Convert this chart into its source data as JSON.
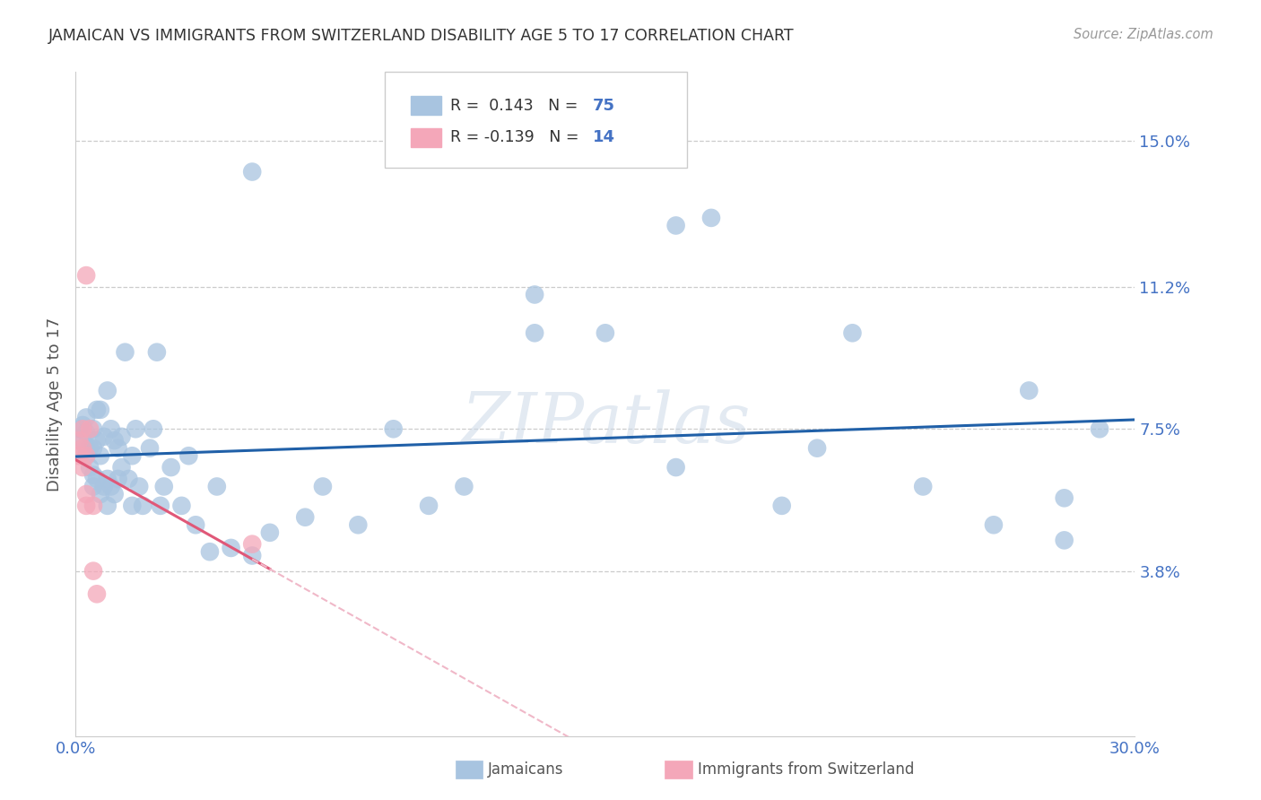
{
  "title": "JAMAICAN VS IMMIGRANTS FROM SWITZERLAND DISABILITY AGE 5 TO 17 CORRELATION CHART",
  "source": "Source: ZipAtlas.com",
  "ylabel": "Disability Age 5 to 17",
  "xlim": [
    0.0,
    0.3
  ],
  "ylim": [
    -0.005,
    0.168
  ],
  "yticks": [
    0.038,
    0.075,
    0.112,
    0.15
  ],
  "ytick_labels": [
    "3.8%",
    "7.5%",
    "11.2%",
    "15.0%"
  ],
  "xticks": [
    0.0,
    0.05,
    0.1,
    0.15,
    0.2,
    0.25,
    0.3
  ],
  "xtick_labels": [
    "0.0%",
    "",
    "",
    "",
    "",
    "",
    "30.0%"
  ],
  "watermark": "ZIPatlas",
  "legend1_r": "0.143",
  "legend1_n": "75",
  "legend2_r": "-0.139",
  "legend2_n": "14",
  "blue_color": "#a8c4e0",
  "pink_color": "#f4a7b9",
  "trend_blue": "#2060a8",
  "trend_pink": "#e05878",
  "trend_pink_dashed": "#f0b8c8",
  "jamaican_x": [
    0.001,
    0.002,
    0.002,
    0.003,
    0.003,
    0.003,
    0.003,
    0.004,
    0.004,
    0.005,
    0.005,
    0.005,
    0.005,
    0.006,
    0.006,
    0.006,
    0.007,
    0.007,
    0.007,
    0.008,
    0.008,
    0.009,
    0.009,
    0.009,
    0.01,
    0.01,
    0.011,
    0.011,
    0.012,
    0.012,
    0.013,
    0.013,
    0.014,
    0.015,
    0.016,
    0.016,
    0.017,
    0.018,
    0.019,
    0.021,
    0.022,
    0.023,
    0.024,
    0.025,
    0.027,
    0.03,
    0.032,
    0.034,
    0.038,
    0.04,
    0.044,
    0.05,
    0.055,
    0.065,
    0.07,
    0.08,
    0.09,
    0.1,
    0.11,
    0.13,
    0.15,
    0.17,
    0.18,
    0.2,
    0.21,
    0.22,
    0.24,
    0.26,
    0.27,
    0.28,
    0.29,
    0.05,
    0.13,
    0.17,
    0.28
  ],
  "jamaican_y": [
    0.075,
    0.072,
    0.076,
    0.068,
    0.07,
    0.074,
    0.078,
    0.065,
    0.07,
    0.06,
    0.063,
    0.07,
    0.075,
    0.062,
    0.072,
    0.08,
    0.058,
    0.068,
    0.08,
    0.06,
    0.073,
    0.055,
    0.062,
    0.085,
    0.06,
    0.075,
    0.058,
    0.072,
    0.062,
    0.07,
    0.065,
    0.073,
    0.095,
    0.062,
    0.055,
    0.068,
    0.075,
    0.06,
    0.055,
    0.07,
    0.075,
    0.095,
    0.055,
    0.06,
    0.065,
    0.055,
    0.068,
    0.05,
    0.043,
    0.06,
    0.044,
    0.042,
    0.048,
    0.052,
    0.06,
    0.05,
    0.075,
    0.055,
    0.06,
    0.11,
    0.1,
    0.065,
    0.13,
    0.055,
    0.07,
    0.1,
    0.06,
    0.05,
    0.085,
    0.046,
    0.075,
    0.142,
    0.1,
    0.128,
    0.057
  ],
  "swiss_x": [
    0.001,
    0.001,
    0.002,
    0.002,
    0.002,
    0.003,
    0.003,
    0.003,
    0.003,
    0.004,
    0.005,
    0.005,
    0.006,
    0.05
  ],
  "swiss_y": [
    0.068,
    0.072,
    0.065,
    0.07,
    0.075,
    0.055,
    0.058,
    0.115,
    0.068,
    0.075,
    0.055,
    0.038,
    0.032,
    0.045
  ]
}
